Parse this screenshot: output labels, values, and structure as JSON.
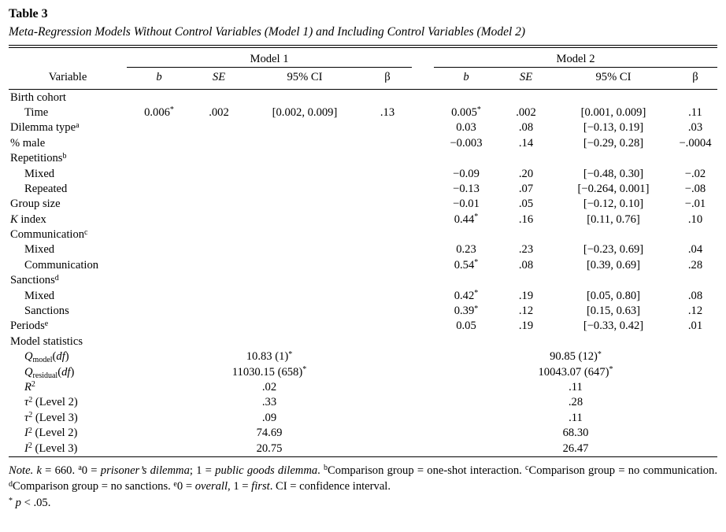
{
  "header": {
    "table_number": "Table 3",
    "table_title": "Meta-Regression Models Without Control Variables (Model 1) and Including Control Variables (Model 2)",
    "variable_label": "Variable",
    "model1_label": "Model 1",
    "model2_label": "Model 2",
    "col_b": "b",
    "col_se": "SE",
    "col_ci": "95% CI",
    "col_beta": "β"
  },
  "colors": {
    "text": "#000000",
    "background": "#ffffff",
    "rule": "#000000"
  },
  "table": {
    "column_names": [
      "b-value",
      "se-value",
      "ci-value",
      "beta-value"
    ],
    "rows": [
      {
        "label": [
          {
            "t": "Birth cohort"
          }
        ],
        "indent": 0,
        "m1": null,
        "m2": null
      },
      {
        "label": [
          {
            "t": "Time"
          }
        ],
        "indent": 1,
        "m1": [
          "0.006*",
          ".002",
          "[0.002, 0.009]",
          ".13"
        ],
        "m2": [
          "0.005*",
          ".002",
          "[0.001, 0.009]",
          ".11"
        ]
      },
      {
        "label": [
          {
            "t": "Dilemma type"
          },
          {
            "t": "a",
            "s": "sup"
          }
        ],
        "indent": 0,
        "m1": null,
        "m2": [
          "0.03",
          ".08",
          "[−0.13, 0.19]",
          ".03"
        ]
      },
      {
        "label": [
          {
            "t": "% male"
          }
        ],
        "indent": 0,
        "m1": null,
        "m2": [
          "−0.003",
          ".14",
          "[−0.29, 0.28]",
          "−.0004"
        ]
      },
      {
        "label": [
          {
            "t": "Repetitions"
          },
          {
            "t": "b",
            "s": "sup"
          }
        ],
        "indent": 0,
        "m1": null,
        "m2": null
      },
      {
        "label": [
          {
            "t": "Mixed"
          }
        ],
        "indent": 1,
        "m1": null,
        "m2": [
          "−0.09",
          ".20",
          "[−0.48, 0.30]",
          "−.02"
        ]
      },
      {
        "label": [
          {
            "t": "Repeated"
          }
        ],
        "indent": 1,
        "m1": null,
        "m2": [
          "−0.13",
          ".07",
          "[−0.264, 0.001]",
          "−.08"
        ]
      },
      {
        "label": [
          {
            "t": "Group size"
          }
        ],
        "indent": 0,
        "m1": null,
        "m2": [
          "−0.01",
          ".05",
          "[−0.12, 0.10]",
          "−.01"
        ]
      },
      {
        "label": [
          {
            "t": "K",
            "s": "i"
          },
          {
            "t": " index"
          }
        ],
        "indent": 0,
        "m1": null,
        "m2": [
          "0.44*",
          ".16",
          "[0.11, 0.76]",
          ".10"
        ]
      },
      {
        "label": [
          {
            "t": "Communication"
          },
          {
            "t": "c",
            "s": "sup"
          }
        ],
        "indent": 0,
        "m1": null,
        "m2": null
      },
      {
        "label": [
          {
            "t": "Mixed"
          }
        ],
        "indent": 1,
        "m1": null,
        "m2": [
          "0.23",
          ".23",
          "[−0.23, 0.69]",
          ".04"
        ]
      },
      {
        "label": [
          {
            "t": "Communication"
          }
        ],
        "indent": 1,
        "m1": null,
        "m2": [
          "0.54*",
          ".08",
          "[0.39, 0.69]",
          ".28"
        ]
      },
      {
        "label": [
          {
            "t": "Sanctions"
          },
          {
            "t": "d",
            "s": "sup"
          }
        ],
        "indent": 0,
        "m1": null,
        "m2": null
      },
      {
        "label": [
          {
            "t": "Mixed"
          }
        ],
        "indent": 1,
        "m1": null,
        "m2": [
          "0.42*",
          ".19",
          "[0.05, 0.80]",
          ".08"
        ]
      },
      {
        "label": [
          {
            "t": "Sanctions"
          }
        ],
        "indent": 1,
        "m1": null,
        "m2": [
          "0.39*",
          ".12",
          "[0.15, 0.63]",
          ".12"
        ]
      },
      {
        "label": [
          {
            "t": "Periods"
          },
          {
            "t": "e",
            "s": "sup"
          }
        ],
        "indent": 0,
        "m1": null,
        "m2": [
          "0.05",
          ".19",
          "[−0.33, 0.42]",
          ".01"
        ]
      },
      {
        "label": [
          {
            "t": "Model statistics"
          }
        ],
        "indent": 0,
        "m1": null,
        "m2": null
      },
      {
        "label": [
          {
            "t": "Q",
            "s": "i"
          },
          {
            "t": "model",
            "s": "sub"
          },
          {
            "t": "("
          },
          {
            "t": "df",
            "s": "i"
          },
          {
            "t": ")"
          }
        ],
        "indent": 1,
        "stat1": "10.83 (1)*",
        "stat2": "90.85 (12)*"
      },
      {
        "label": [
          {
            "t": "Q",
            "s": "i"
          },
          {
            "t": "residual",
            "s": "sub"
          },
          {
            "t": "("
          },
          {
            "t": "df",
            "s": "i"
          },
          {
            "t": ")"
          }
        ],
        "indent": 1,
        "stat1": "11030.15 (658)*",
        "stat2": "10043.07 (647)*"
      },
      {
        "label": [
          {
            "t": "R",
            "s": "i"
          },
          {
            "t": "2",
            "s": "sup"
          }
        ],
        "indent": 1,
        "stat1": ".02",
        "stat2": ".11"
      },
      {
        "label": [
          {
            "t": "τ",
            "s": "i"
          },
          {
            "t": "2",
            "s": "sup"
          },
          {
            "t": " (Level 2)"
          }
        ],
        "indent": 1,
        "stat1": ".33",
        "stat2": ".28"
      },
      {
        "label": [
          {
            "t": "τ",
            "s": "i"
          },
          {
            "t": "2",
            "s": "sup"
          },
          {
            "t": " (Level 3)"
          }
        ],
        "indent": 1,
        "stat1": ".09",
        "stat2": ".11"
      },
      {
        "label": [
          {
            "t": "I",
            "s": "i"
          },
          {
            "t": "2",
            "s": "sup"
          },
          {
            "t": " (Level 2)"
          }
        ],
        "indent": 1,
        "stat1": "74.69",
        "stat2": "68.30"
      },
      {
        "label": [
          {
            "t": "I",
            "s": "i"
          },
          {
            "t": "2",
            "s": "sup"
          },
          {
            "t": " (Level 3)"
          }
        ],
        "indent": 1,
        "stat1": "20.75",
        "stat2": "26.47"
      }
    ]
  },
  "notes": {
    "note_parts": [
      {
        "t": "Note.",
        "s": "i"
      },
      {
        "t": "  "
      },
      {
        "t": "k",
        "s": "i"
      },
      {
        "t": " = 660. "
      },
      {
        "t": "a",
        "s": "sup"
      },
      {
        "t": "0 = "
      },
      {
        "t": "prisoner’s dilemma",
        "s": "i"
      },
      {
        "t": "; 1 = "
      },
      {
        "t": "public goods dilemma",
        "s": "i"
      },
      {
        "t": ". "
      },
      {
        "t": "b",
        "s": "sup"
      },
      {
        "t": "Comparison group = one-shot interaction. "
      },
      {
        "t": "c",
        "s": "sup"
      },
      {
        "t": "Comparison group = no communication. "
      },
      {
        "t": "d",
        "s": "sup"
      },
      {
        "t": "Comparison group = no sanctions. "
      },
      {
        "t": "e",
        "s": "sup"
      },
      {
        "t": "0 = "
      },
      {
        "t": "overall",
        "s": "i"
      },
      {
        "t": ", 1 = "
      },
      {
        "t": "first",
        "s": "i"
      },
      {
        "t": ". CI = confidence interval."
      }
    ],
    "sig_parts": [
      {
        "t": "*",
        "s": "sup"
      },
      {
        "t": " "
      },
      {
        "t": "p",
        "s": "i"
      },
      {
        "t": " < .05."
      }
    ]
  }
}
